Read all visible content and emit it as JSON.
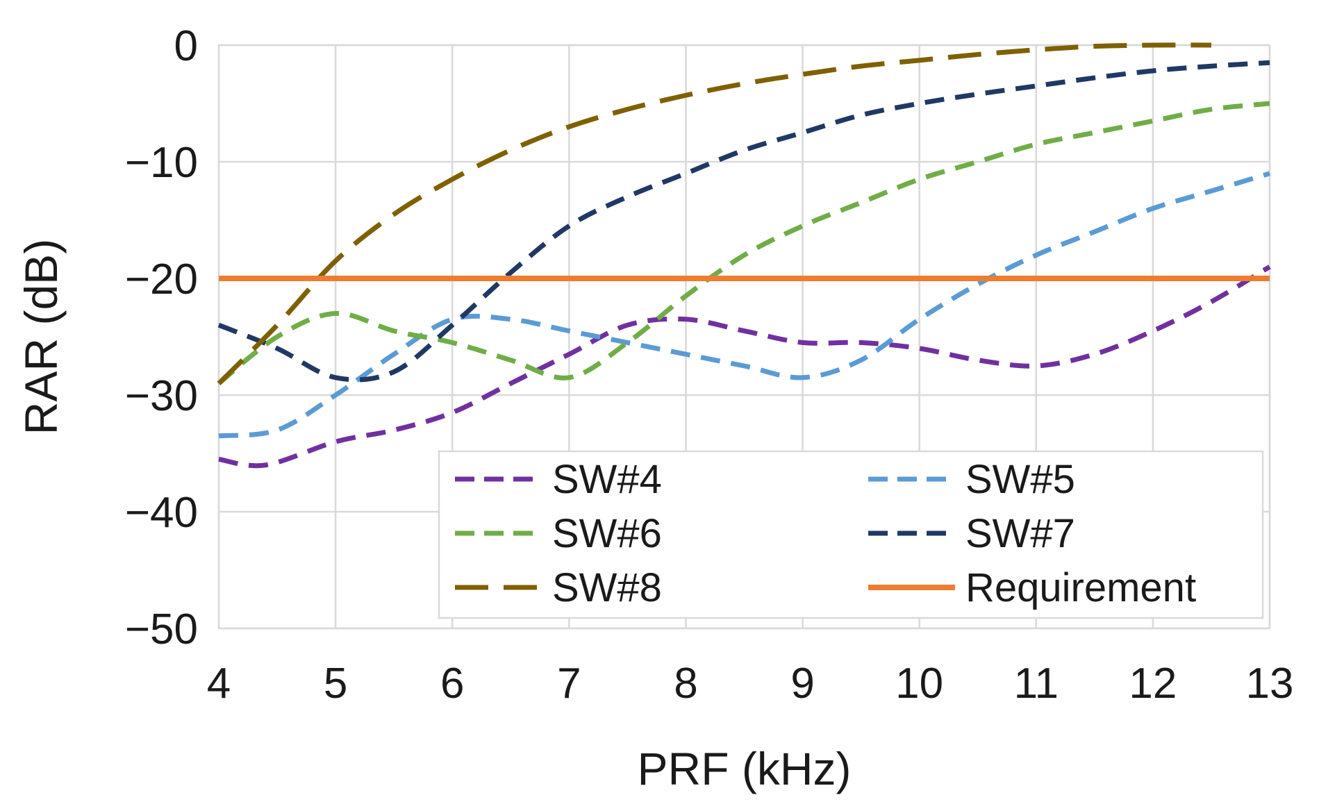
{
  "chart_data": {
    "type": "line",
    "title": "",
    "xlabel": "PRF (kHz)",
    "ylabel": "RAR (dB)",
    "xlim": [
      4,
      13
    ],
    "ylim": [
      -50,
      0
    ],
    "xticks": [
      4,
      5,
      6,
      7,
      8,
      9,
      10,
      11,
      12,
      13
    ],
    "yticks": [
      0,
      -10,
      -20,
      -30,
      -40,
      -50
    ],
    "ytick_labels": [
      "0",
      "−10",
      "−20",
      "−30",
      "−40",
      "−50"
    ],
    "grid": true,
    "legend_position": "bottom-right",
    "series": [
      {
        "name": "SW#4",
        "color": "#7030a0",
        "dash": "short",
        "x": [
          4,
          4.4,
          5,
          5.5,
          6,
          6.5,
          7,
          7.5,
          8,
          8.5,
          9,
          9.5,
          10,
          10.5,
          11,
          11.5,
          12,
          12.5,
          13
        ],
        "y": [
          -35.5,
          -36,
          -34,
          -33,
          -31.5,
          -29,
          -26.5,
          -24,
          -23.5,
          -24.5,
          -25.5,
          -25.5,
          -26,
          -27,
          -27.5,
          -26.5,
          -24.5,
          -22,
          -19
        ]
      },
      {
        "name": "SW#5",
        "color": "#5b9bd5",
        "dash": "short",
        "x": [
          4,
          4.5,
          5,
          5.5,
          6,
          6.5,
          7,
          7.5,
          8,
          8.5,
          9,
          9.5,
          10,
          10.5,
          11,
          11.5,
          12,
          12.5,
          13
        ],
        "y": [
          -33.5,
          -33,
          -30,
          -26.5,
          -23.5,
          -23.5,
          -24.5,
          -25.5,
          -26.5,
          -27.5,
          -28.5,
          -27,
          -23.5,
          -20.5,
          -18,
          -16,
          -14,
          -12.5,
          -11
        ]
      },
      {
        "name": "SW#6",
        "color": "#70ad47",
        "dash": "short",
        "x": [
          4,
          4.5,
          5,
          5.5,
          6,
          6.5,
          7,
          7.5,
          8,
          8.5,
          9,
          9.5,
          10,
          10.5,
          11,
          11.5,
          12,
          12.5,
          13
        ],
        "y": [
          -29,
          -25,
          -23,
          -24.5,
          -25.5,
          -27,
          -28.5,
          -25.5,
          -21.5,
          -18,
          -15.5,
          -13.5,
          -11.5,
          -10,
          -8.5,
          -7.5,
          -6.5,
          -5.5,
          -5
        ]
      },
      {
        "name": "SW#7",
        "color": "#203864",
        "dash": "short",
        "x": [
          4,
          4.5,
          5,
          5.5,
          6,
          6.5,
          7,
          7.5,
          8,
          8.5,
          9,
          9.5,
          10,
          10.5,
          11,
          11.5,
          12,
          12.5,
          13
        ],
        "y": [
          -24,
          -26,
          -28.5,
          -28,
          -24,
          -19.5,
          -15.5,
          -13,
          -11,
          -9,
          -7.5,
          -6,
          -5,
          -4.2,
          -3.5,
          -2.8,
          -2.2,
          -1.8,
          -1.5
        ]
      },
      {
        "name": "SW#8",
        "color": "#7f6000",
        "dash": "long",
        "x": [
          4,
          4.5,
          5,
          5.5,
          6,
          6.5,
          7,
          7.5,
          8,
          8.5,
          9,
          9.5,
          10,
          10.5,
          11,
          11.5,
          12,
          12.5
        ],
        "y": [
          -29,
          -24,
          -18.5,
          -14.5,
          -11.5,
          -9,
          -7,
          -5.5,
          -4.3,
          -3.3,
          -2.5,
          -1.8,
          -1.3,
          -0.8,
          -0.4,
          -0.1,
          0,
          0
        ]
      },
      {
        "name": "Requirement",
        "color": "#ed7d31",
        "dash": "solid",
        "x": [
          4,
          13
        ],
        "y": [
          -20,
          -20
        ]
      }
    ]
  }
}
